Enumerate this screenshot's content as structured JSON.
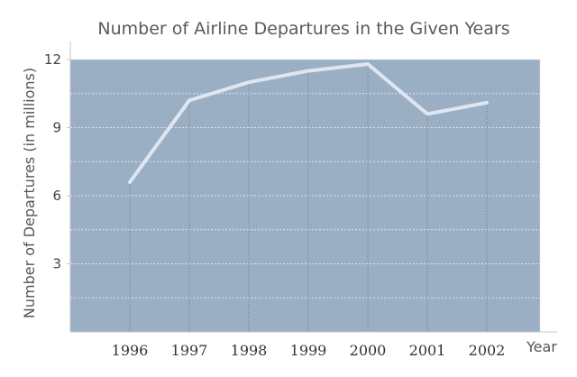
{
  "chart_data": {
    "type": "line",
    "title": "Number of Airline Departures in the Given Years",
    "xlabel": "Year",
    "ylabel": "Number of Departures (in millions)",
    "categories": [
      "1996",
      "1997",
      "1998",
      "1999",
      "2000",
      "2001",
      "2002"
    ],
    "series": [
      {
        "values": [
          6.6,
          10.2,
          11.0,
          11.5,
          11.8,
          9.6,
          10.1
        ]
      }
    ],
    "yticks": [
      "3",
      "6",
      "9",
      "12"
    ],
    "ylim": [
      0,
      12
    ],
    "grid": true,
    "legend": "none",
    "colors": {
      "plot_background": "#9aafc4",
      "line": "#dfe6f2",
      "grid_line": "#dde5ee",
      "axis_line": "#c4c4c4",
      "drop_line": "#6e7680"
    }
  }
}
